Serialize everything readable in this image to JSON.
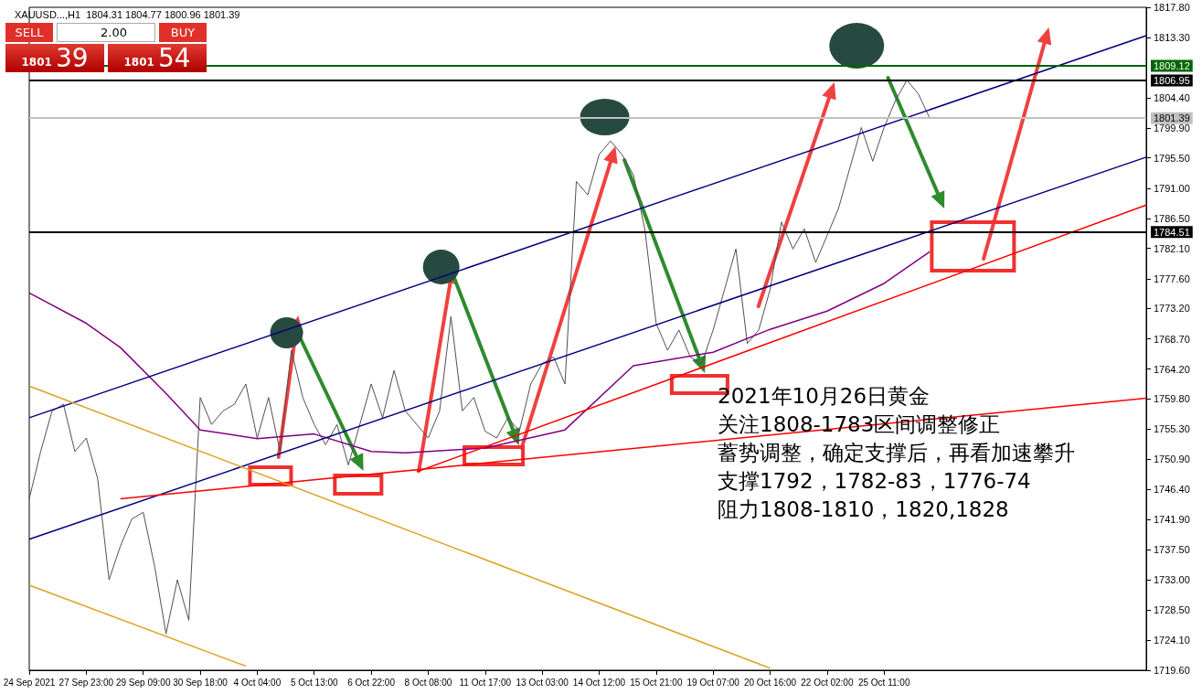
{
  "chart_data": {
    "type": "line",
    "title": "XAUUSD...,H1  1804.31 1804.77 1800.96 1801.39",
    "annotations": [
      "2021年10月26日黄金",
      "关注1808-1783区间调整修正",
      "蓄势调整，确定支撑后，再看加速攀升",
      "支撑1792，1782-83，1776-74",
      "阻力1808-1810，1820,1828",
      "SELL",
      "2.00",
      "BUY",
      "1801",
      "39",
      "1801",
      "54"
    ],
    "categories": [
      "24 Sep 2021",
      null,
      null,
      null,
      null,
      "27 Sep 23:00",
      null,
      null,
      null,
      null,
      "29 Sep 09:00",
      null,
      null,
      null,
      null,
      "30 Sep 18:00",
      null,
      null,
      null,
      null,
      "4 Oct 04:00",
      null,
      null,
      null,
      null,
      "5 Oct 13:00",
      null,
      null,
      null,
      null,
      "6 Oct 22:00",
      null,
      null,
      null,
      null,
      "8 Oct 08:00",
      null,
      null,
      null,
      null,
      "11 Oct 17:00",
      null,
      null,
      null,
      null,
      "13 Oct 03:00",
      null,
      null,
      null,
      null,
      "14 Oct 12:00",
      null,
      null,
      null,
      null,
      "15 Oct 21:00",
      null,
      null,
      null,
      null,
      "19 Oct 07:00",
      null,
      null,
      null,
      null,
      "20 Oct 16:00",
      null,
      null,
      null,
      null,
      "22 Oct 02:00",
      null,
      null,
      null,
      null,
      "25 Oct 11:00",
      null,
      null,
      null,
      null,
      null,
      null,
      null,
      null,
      null,
      null,
      null,
      null,
      null,
      null,
      null,
      null,
      null,
      null,
      null,
      null,
      null,
      null,
      null
    ],
    "ylim": [
      1719.6,
      1817.8
    ],
    "yticks": [
      {
        "value": 1719.6,
        "label": "1719.60"
      },
      {
        "value": 1724.1,
        "label": "1724.10"
      },
      {
        "value": 1728.5,
        "label": "1728.50"
      },
      {
        "value": 1733,
        "label": "1733.00"
      },
      {
        "value": 1737.5,
        "label": "1737.50"
      },
      {
        "value": 1741.9,
        "label": "1741.90"
      },
      {
        "value": 1746.4,
        "label": "1746.40"
      },
      {
        "value": 1750.9,
        "label": "1750.90"
      },
      {
        "value": 1755.3,
        "label": "1755.30"
      },
      {
        "value": 1759.8,
        "label": "1759.80"
      },
      {
        "value": 1764.2,
        "label": "1764.20"
      },
      {
        "value": 1768.7,
        "label": "1768.70"
      },
      {
        "value": 1773.2,
        "label": "1773.20"
      },
      {
        "value": 1777.6,
        "label": "1777.60"
      },
      {
        "value": 1782.1,
        "label": "1782.10"
      },
      {
        "value": 1786.5,
        "label": "1786.50"
      },
      {
        "value": 1791,
        "label": "1791.00"
      },
      {
        "value": 1795.5,
        "label": "1795.50"
      },
      {
        "value": 1799.9,
        "label": "1799.90"
      },
      {
        "value": 1804.4,
        "label": "1804.40"
      },
      {
        "value": 1813.3,
        "label": "1813.30"
      },
      {
        "value": 1817.8,
        "label": "1817.80"
      }
    ],
    "grid": false,
    "marker": "none",
    "line_style": "solid",
    "ref_lines": [
      {
        "axis": "y",
        "value": 1809.12,
        "label": "1809.12",
        "color": "#006400"
      },
      {
        "axis": "y",
        "value": 1806.95,
        "label": "1806.95",
        "color": "#000000"
      },
      {
        "axis": "y",
        "value": 1801.39,
        "label": "1801.39",
        "color": "#c0c0c0"
      },
      {
        "axis": "y",
        "value": 1784.51,
        "label": "1784.51",
        "color": "#000000"
      }
    ],
    "series": [
      {
        "color": "#505050",
        "values": [
          1745,
          1752,
          1758,
          1759,
          1752,
          1754,
          1748,
          1733,
          1738,
          1742,
          1743,
          1735,
          1725,
          1733,
          1727,
          1760,
          1756,
          1758,
          1759,
          1762,
          1754,
          1760,
          1752,
          1767,
          1760,
          1756,
          1753,
          1756,
          1750,
          1756,
          1762,
          1757,
          1764,
          1758,
          1756,
          1754,
          1758,
          1772,
          1758,
          1760,
          1755,
          1754,
          1757,
          1755,
          1762,
          1765,
          1766,
          1762,
          1792,
          1790,
          1796,
          1798,
          1796,
          1793,
          1785,
          1771,
          1767,
          1770,
          1766,
          1765,
          1770,
          1776,
          1782,
          1768,
          1770,
          1776,
          1786,
          1782,
          1785,
          1780,
          1784,
          1788,
          1794,
          1800,
          1795,
          1800,
          1804,
          1807,
          1805,
          1801.4,
          null,
          null,
          null,
          null,
          null,
          null,
          null,
          null,
          null,
          null,
          null,
          null,
          null,
          null,
          null,
          null,
          null,
          null,
          null
        ]
      },
      {
        "color": "#800080",
        "values": [
          1775.5,
          null,
          null,
          null,
          null,
          1771,
          null,
          null,
          1767.4,
          null,
          null,
          null,
          1760.6,
          null,
          null,
          1755.2,
          null,
          null,
          null,
          null,
          1753.9,
          null,
          null,
          null,
          null,
          1754.6,
          null,
          null,
          null,
          null,
          1752,
          null,
          null,
          1751.8,
          null,
          null,
          null,
          null,
          null,
          null,
          1752.5,
          null,
          null,
          null,
          null,
          null,
          null,
          1755.2,
          null,
          null,
          null,
          null,
          null,
          1764.7,
          null,
          null,
          null,
          null,
          null,
          null,
          1766.7,
          null,
          null,
          null,
          null,
          1770.1,
          null,
          null,
          null,
          null,
          1772.8,
          null,
          null,
          null,
          null,
          1776.9,
          null,
          null,
          null,
          1781.6,
          null,
          null,
          null,
          null,
          null,
          null,
          null,
          null,
          null,
          null,
          null,
          null,
          null,
          null,
          null,
          null,
          null,
          null,
          null
        ]
      },
      {
        "color": "#000080",
        "values": [
          1757,
          null,
          null,
          null,
          null,
          null,
          null,
          null,
          null,
          null,
          null,
          null,
          null,
          null,
          null,
          null,
          null,
          null,
          null,
          null,
          null,
          null,
          null,
          null,
          null,
          null,
          null,
          null,
          null,
          null,
          null,
          null,
          null,
          null,
          null,
          null,
          null,
          null,
          null,
          null,
          null,
          null,
          null,
          null,
          null,
          null,
          null,
          null,
          null,
          null,
          null,
          null,
          null,
          null,
          null,
          null,
          null,
          null,
          null,
          null,
          null,
          null,
          null,
          null,
          null,
          null,
          null,
          null,
          null,
          null,
          null,
          null,
          null,
          null,
          null,
          null,
          null,
          null,
          null,
          null,
          null,
          null,
          null,
          null,
          null,
          null,
          null,
          null,
          null,
          null,
          null,
          null,
          null,
          null,
          null,
          null,
          null,
          null,
          1813.6
        ]
      },
      {
        "color": "#000080",
        "values": [
          1739,
          null,
          null,
          null,
          null,
          null,
          null,
          null,
          null,
          null,
          null,
          null,
          null,
          null,
          null,
          null,
          null,
          null,
          null,
          null,
          null,
          null,
          null,
          null,
          null,
          null,
          null,
          null,
          null,
          null,
          null,
          null,
          null,
          null,
          null,
          null,
          null,
          null,
          null,
          null,
          null,
          null,
          null,
          null,
          null,
          null,
          null,
          null,
          null,
          null,
          null,
          null,
          null,
          null,
          null,
          null,
          null,
          null,
          null,
          null,
          null,
          null,
          null,
          null,
          null,
          null,
          null,
          null,
          null,
          null,
          null,
          null,
          null,
          null,
          null,
          null,
          null,
          null,
          null,
          null,
          null,
          null,
          null,
          null,
          null,
          null,
          null,
          null,
          null,
          null,
          null,
          null,
          null,
          null,
          null,
          null,
          null,
          null,
          1795.6
        ]
      },
      {
        "color": "#ff0000",
        "values": [
          null,
          null,
          null,
          null,
          null,
          null,
          null,
          null,
          1745,
          null,
          null,
          null,
          null,
          null,
          null,
          null,
          null,
          null,
          null,
          null,
          null,
          null,
          null,
          null,
          null,
          null,
          null,
          null,
          null,
          null,
          null,
          null,
          null,
          null,
          null,
          null,
          null,
          null,
          null,
          null,
          null,
          null,
          null,
          null,
          null,
          null,
          null,
          null,
          null,
          null,
          null,
          null,
          null,
          null,
          null,
          null,
          null,
          null,
          null,
          null,
          null,
          null,
          null,
          null,
          null,
          null,
          null,
          null,
          null,
          null,
          null,
          null,
          null,
          null,
          null,
          null,
          null,
          null,
          null,
          null,
          null,
          null,
          null,
          null,
          null,
          null,
          null,
          null,
          null,
          null,
          null,
          null,
          null,
          null,
          null,
          null,
          null,
          null,
          1759.9
        ]
      },
      {
        "color": "#ff0000",
        "values": [
          null,
          null,
          null,
          null,
          null,
          null,
          null,
          null,
          null,
          null,
          null,
          null,
          null,
          null,
          null,
          null,
          null,
          null,
          null,
          null,
          null,
          null,
          null,
          null,
          null,
          null,
          null,
          null,
          null,
          null,
          null,
          null,
          null,
          null,
          1749,
          null,
          null,
          null,
          null,
          null,
          null,
          null,
          null,
          null,
          null,
          null,
          null,
          null,
          null,
          null,
          null,
          null,
          null,
          null,
          null,
          null,
          null,
          null,
          null,
          null,
          null,
          null,
          null,
          null,
          null,
          null,
          null,
          null,
          null,
          null,
          null,
          null,
          null,
          null,
          null,
          null,
          null,
          null,
          null,
          null,
          null,
          null,
          null,
          null,
          null,
          null,
          null,
          null,
          null,
          null,
          null,
          null,
          null,
          null,
          null,
          null,
          null,
          null,
          1788.5
        ]
      },
      {
        "color": "#daa520",
        "values": [
          1761.7,
          null,
          null,
          null,
          null,
          null,
          null,
          null,
          null,
          null,
          null,
          null,
          null,
          null,
          null,
          null,
          null,
          null,
          null,
          null,
          null,
          null,
          null,
          null,
          null,
          null,
          null,
          null,
          null,
          null,
          null,
          null,
          null,
          null,
          null,
          null,
          null,
          null,
          null,
          null,
          null,
          null,
          null,
          null,
          null,
          null,
          null,
          null,
          null,
          null,
          null,
          null,
          null,
          null,
          null,
          null,
          null,
          null,
          null,
          null,
          null,
          null,
          null,
          null,
          null,
          1719.9,
          null,
          null,
          null,
          null,
          null,
          null,
          null,
          null,
          null,
          null,
          null,
          null,
          null,
          null,
          null,
          null,
          null,
          null,
          null,
          null,
          null,
          null,
          null,
          null,
          null,
          null,
          null,
          null,
          null,
          null,
          null,
          null,
          null
        ]
      },
      {
        "color": "#daa520",
        "values": [
          1732.2,
          null,
          null,
          null,
          null,
          null,
          null,
          null,
          null,
          null,
          null,
          null,
          null,
          null,
          null,
          null,
          null,
          null,
          null,
          1720.2,
          null,
          null,
          null,
          null,
          null,
          null,
          null,
          null,
          null,
          null,
          null,
          null,
          null,
          null,
          null,
          null,
          null,
          null,
          null,
          null,
          null,
          null,
          null,
          null,
          null,
          null,
          null,
          null,
          null,
          null,
          null,
          null,
          null,
          null,
          null,
          null,
          null,
          null,
          null,
          null,
          null,
          null,
          null,
          null,
          null,
          null,
          null,
          null,
          null,
          null,
          null,
          null,
          null,
          null,
          null,
          null,
          null,
          null,
          null,
          null,
          null,
          null,
          null,
          null,
          null,
          null,
          null,
          null,
          null,
          null,
          null,
          null,
          null,
          null,
          null,
          null,
          null,
          null,
          null
        ]
      }
    ]
  }
}
